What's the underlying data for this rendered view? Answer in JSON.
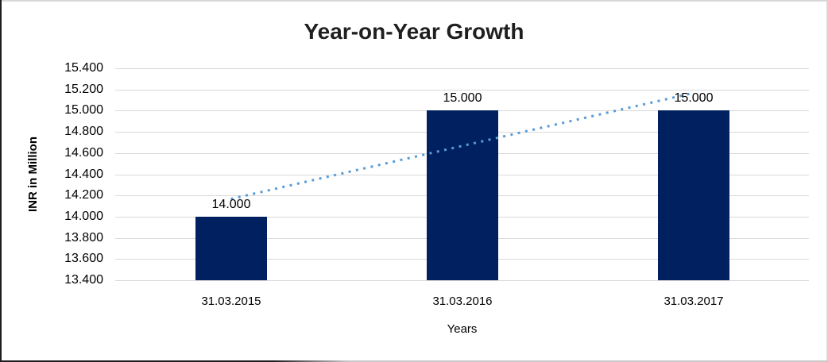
{
  "chart_data": {
    "type": "bar",
    "title": "Year-on-Year Growth",
    "xlabel": "Years",
    "ylabel": "INR in Million",
    "categories": [
      "31.03.2015",
      "31.03.2016",
      "31.03.2017"
    ],
    "values": [
      14.0,
      15.0,
      15.0
    ],
    "value_labels": [
      "14.000",
      "15.000",
      "15.000"
    ],
    "ylim": [
      13.4,
      15.4
    ],
    "yticks": [
      13.4,
      13.6,
      13.8,
      14.0,
      14.2,
      14.4,
      14.6,
      14.8,
      15.0,
      15.2,
      15.4
    ],
    "ytick_labels": [
      "13.400",
      "13.600",
      "13.800",
      "14.000",
      "14.200",
      "14.400",
      "14.600",
      "14.800",
      "15.000",
      "15.200",
      "15.400"
    ],
    "grid": true,
    "legend": "none",
    "trendline": {
      "type": "linear",
      "style": "dotted",
      "start_category_index": 0,
      "end_category_index": 2,
      "y_start": 14.167,
      "y_end": 15.167
    },
    "colors": {
      "bar": "#002060",
      "trendline": "#5b9bd5",
      "gridline": "#d9d9d9",
      "title_text": "#1f1f1f",
      "tick_text": "#000000"
    }
  }
}
